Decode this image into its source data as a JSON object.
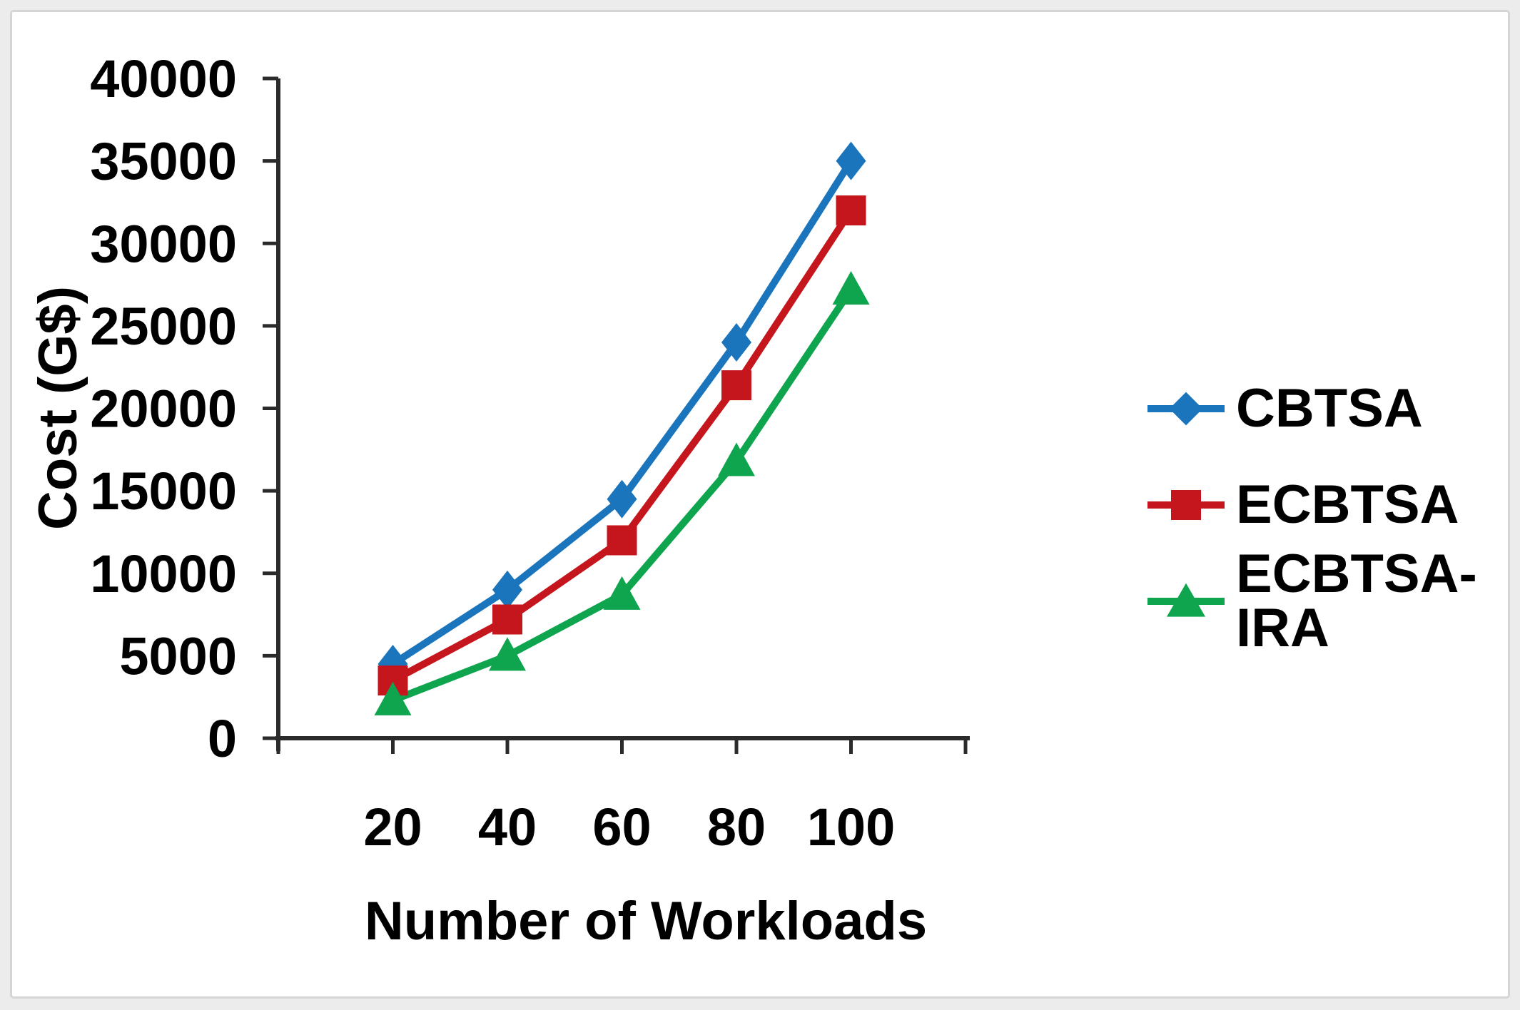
{
  "figure": {
    "background_color": "#ffffff",
    "outer_background_color": "#ececec",
    "frame_border_color": "#d5d5d5",
    "text_color": "#000000",
    "axis_color": "#2b2b2b"
  },
  "chart_data": {
    "type": "line",
    "title": "",
    "xlabel": "Number of Workloads",
    "ylabel": "Cost (G$)",
    "categories": [
      "20",
      "40",
      "60",
      "80",
      "100"
    ],
    "y_ticks": [
      0,
      5000,
      10000,
      15000,
      20000,
      25000,
      30000,
      35000,
      40000
    ],
    "ylim": [
      0,
      40000
    ],
    "grid": false,
    "legend_position": "right",
    "series": [
      {
        "name": "CBTSA",
        "color": "#1b75bc",
        "marker": "diamond",
        "values": [
          4500,
          9000,
          14500,
          24000,
          35000
        ]
      },
      {
        "name": "ECBTSA",
        "color": "#c4161c",
        "marker": "square",
        "values": [
          3500,
          7200,
          12000,
          21400,
          32000
        ]
      },
      {
        "name": "ECBTSA-IRA",
        "color": "#0fa54f",
        "marker": "triangle",
        "values": [
          2300,
          5000,
          8700,
          16800,
          27200
        ]
      }
    ]
  }
}
